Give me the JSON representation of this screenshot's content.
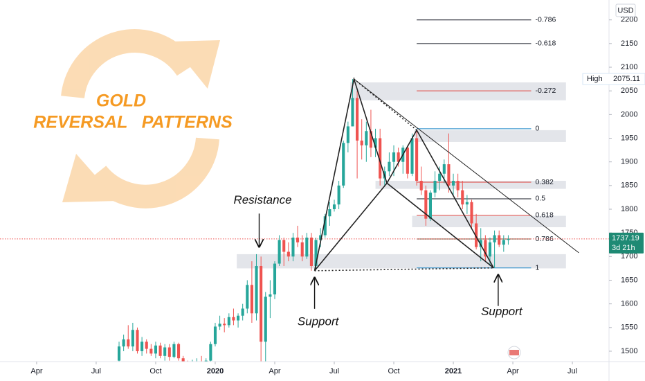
{
  "chart_data": {
    "type": "candlestick",
    "currency": "USD",
    "logo": {
      "line1": "GOLD",
      "line2": "REVERSAL   PATTERNS"
    },
    "annotations": [
      {
        "text": "Resistance",
        "x": 48.6,
        "price": 1700
      },
      {
        "text": "Support",
        "x": 60.7,
        "price": 1670
      },
      {
        "text": "Support",
        "x": 100.8,
        "price": 1676
      }
    ],
    "xlim": [
      -8,
      125
    ],
    "ylim": [
      1478,
      2242
    ],
    "xticks": [
      {
        "value": 0,
        "label": "Apr"
      },
      {
        "value": 13,
        "label": "Jul"
      },
      {
        "value": 26,
        "label": "Oct"
      },
      {
        "value": 39,
        "label": "2020"
      },
      {
        "value": 52,
        "label": "Apr"
      },
      {
        "value": 65,
        "label": "Jul"
      },
      {
        "value": 78,
        "label": "Oct"
      },
      {
        "value": 91,
        "label": "2021"
      },
      {
        "value": 104,
        "label": "Apr"
      },
      {
        "value": 117,
        "label": "Jul"
      }
    ],
    "yticks": [
      1500,
      1550,
      1600,
      1650,
      1700,
      1750,
      1800,
      1850,
      1900,
      1950,
      2000,
      2050,
      2100,
      2150,
      2200
    ],
    "up_color": "#26a69a",
    "down_color": "#ef5350",
    "x": [
      18,
      19,
      20,
      21,
      22,
      23,
      24,
      25,
      26,
      27,
      28,
      29,
      30,
      31,
      32,
      33,
      34,
      35,
      36,
      37,
      38,
      39,
      40,
      41,
      42,
      43,
      44,
      45,
      46,
      47,
      48,
      49,
      50,
      51,
      52,
      53,
      54,
      55,
      56,
      57,
      58,
      59,
      60,
      61,
      62,
      63,
      64,
      65,
      66,
      67,
      68,
      69,
      70,
      71,
      72,
      73,
      74,
      75,
      76,
      77,
      78,
      79,
      80,
      81,
      82,
      83,
      84,
      85,
      86,
      87,
      88,
      89,
      90,
      91,
      92,
      93,
      94,
      95,
      96,
      97,
      98,
      99,
      100,
      101,
      102,
      103
    ],
    "open": [
      1480,
      1510,
      1525,
      1510,
      1545,
      1500,
      1520,
      1505,
      1495,
      1512,
      1490,
      1508,
      1488,
      1515,
      1485,
      1470,
      1465,
      1475,
      1478,
      1470,
      1480,
      1515,
      1552,
      1558,
      1555,
      1572,
      1565,
      1575,
      1590,
      1640,
      1580,
      1680,
      1520,
      1615,
      1620,
      1685,
      1735,
      1710,
      1700,
      1740,
      1730,
      1700,
      1740,
      1680,
      1735,
      1745,
      1785,
      1800,
      1810,
      1850,
      1940,
      1975,
      2035,
      1945,
      1935,
      1965,
      1930,
      1950,
      1865,
      1880,
      1900,
      1920,
      1900,
      1930,
      1875,
      1950,
      1860,
      1840,
      1780,
      1835,
      1860,
      1875,
      1895,
      1850,
      1860,
      1840,
      1810,
      1815,
      1770,
      1720,
      1735,
      1700,
      1730,
      1745,
      1725,
      1735
    ],
    "high": [
      1520,
      1535,
      1555,
      1560,
      1550,
      1530,
      1525,
      1515,
      1520,
      1518,
      1515,
      1515,
      1520,
      1518,
      1490,
      1480,
      1482,
      1485,
      1490,
      1485,
      1520,
      1560,
      1575,
      1570,
      1580,
      1590,
      1580,
      1600,
      1650,
      1690,
      1705,
      1700,
      1625,
      1650,
      1690,
      1745,
      1740,
      1730,
      1750,
      1765,
      1745,
      1750,
      1750,
      1740,
      1760,
      1790,
      1815,
      1820,
      1860,
      1945,
      1985,
      2075,
      2050,
      1990,
      1985,
      2010,
      1970,
      1970,
      1890,
      1920,
      1935,
      1930,
      1935,
      1935,
      1960,
      1965,
      1890,
      1850,
      1840,
      1880,
      1890,
      1905,
      1960,
      1875,
      1875,
      1860,
      1830,
      1820,
      1790,
      1760,
      1745,
      1740,
      1755,
      1755,
      1745,
      1745
    ],
    "low": [
      1475,
      1500,
      1505,
      1500,
      1495,
      1490,
      1495,
      1490,
      1485,
      1485,
      1480,
      1480,
      1485,
      1480,
      1460,
      1455,
      1460,
      1462,
      1460,
      1465,
      1475,
      1510,
      1545,
      1540,
      1550,
      1555,
      1550,
      1565,
      1580,
      1560,
      1565,
      1450,
      1475,
      1570,
      1610,
      1680,
      1680,
      1690,
      1690,
      1720,
      1690,
      1695,
      1670,
      1675,
      1720,
      1740,
      1765,
      1795,
      1800,
      1845,
      1920,
      1975,
      1865,
      1905,
      1900,
      1910,
      1910,
      1850,
      1850,
      1870,
      1870,
      1890,
      1875,
      1865,
      1870,
      1850,
      1830,
      1765,
      1775,
      1825,
      1840,
      1855,
      1835,
      1830,
      1825,
      1800,
      1790,
      1760,
      1715,
      1690,
      1690,
      1680,
      1676,
      1720,
      1710,
      1725
    ],
    "close": [
      1510,
      1525,
      1510,
      1545,
      1500,
      1520,
      1505,
      1495,
      1512,
      1490,
      1508,
      1488,
      1515,
      1485,
      1470,
      1465,
      1475,
      1478,
      1470,
      1480,
      1515,
      1552,
      1558,
      1555,
      1572,
      1565,
      1575,
      1590,
      1640,
      1580,
      1680,
      1520,
      1615,
      1620,
      1685,
      1735,
      1710,
      1700,
      1740,
      1730,
      1700,
      1740,
      1680,
      1735,
      1745,
      1785,
      1800,
      1810,
      1850,
      1940,
      1975,
      2035,
      1945,
      1935,
      1965,
      1930,
      1950,
      1865,
      1880,
      1900,
      1920,
      1900,
      1930,
      1875,
      1950,
      1860,
      1840,
      1780,
      1835,
      1860,
      1875,
      1895,
      1850,
      1860,
      1840,
      1810,
      1815,
      1770,
      1720,
      1735,
      1700,
      1730,
      1745,
      1725,
      1735,
      1737.19
    ],
    "zones": [
      {
        "x": 68.5,
        "low": 2030,
        "high": 2068
      },
      {
        "x": 82.5,
        "low": 1942,
        "high": 1967
      },
      {
        "x": 74,
        "low": 1843,
        "high": 1860
      },
      {
        "x": 82,
        "low": 1762,
        "high": 1786
      },
      {
        "x": 43.7,
        "low": 1675,
        "high": 1705
      }
    ],
    "zone_end": 115.6,
    "fib": {
      "x_start": 83,
      "x_end": 108,
      "levels": [
        {
          "level": -0.786,
          "price": 2200,
          "color": "#131722"
        },
        {
          "level": -0.618,
          "price": 2150,
          "color": "#131722"
        },
        {
          "level": -0.272,
          "price": 2050,
          "color": "#e0403a"
        },
        {
          "level": 0,
          "price": 1970,
          "color": "#1e88c8"
        },
        {
          "level": 0.382,
          "price": 1857,
          "color": "#e0403a"
        },
        {
          "level": 0.5,
          "price": 1822,
          "color": "#131722"
        },
        {
          "level": 0.618,
          "price": 1787,
          "color": "#e0403a"
        },
        {
          "level": 0.786,
          "price": 1737,
          "color": "#5d3a1a"
        },
        {
          "level": 1,
          "price": 1676,
          "color": "#1e88c8"
        }
      ]
    },
    "pattern": {
      "x": [
        60.7,
        69.3,
        76.5,
        83,
        99.8
      ],
      "y": [
        1670,
        2075,
        1855,
        1967,
        1676
      ]
    },
    "trendline": {
      "x": [
        69.3,
        118.4
      ],
      "y": [
        2075,
        1708
      ]
    },
    "last_price": 1737.19,
    "countdown": "3d 21h",
    "high_label": "High",
    "high_value": 2075.11
  }
}
